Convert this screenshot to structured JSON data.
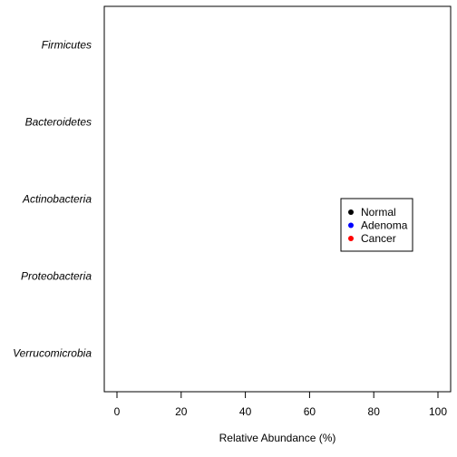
{
  "chart_data": {
    "type": "scatter",
    "categories": [
      "Firmicutes",
      "Bacteroidetes",
      "Actinobacteria",
      "Proteobacteria",
      "Verrucomicrobia"
    ],
    "series": [
      {
        "name": "Normal",
        "color": "#000000",
        "values": []
      },
      {
        "name": "Adenoma",
        "color": "#0000ff",
        "values": []
      },
      {
        "name": "Cancer",
        "color": "#ff0000",
        "values": []
      }
    ],
    "xlabel": "Relative Abundance (%)",
    "ylabel": "",
    "title": "",
    "xlim": [
      0,
      100
    ],
    "xticks": [
      0,
      20,
      40,
      60,
      80,
      100
    ],
    "grid": false,
    "legend_position": "right"
  }
}
